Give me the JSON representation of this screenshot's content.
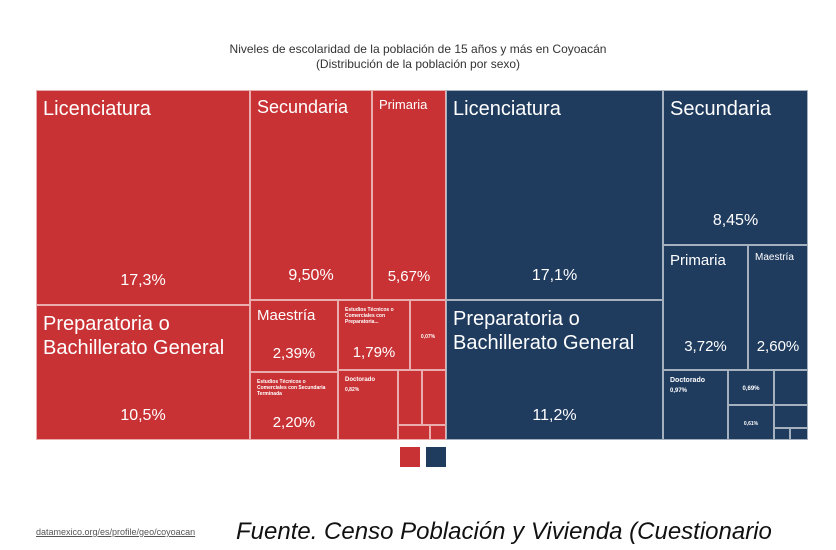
{
  "chart_data": {
    "type": "treemap",
    "title": "Niveles de escolaridad de la población de 15 años y más en Coyoacán",
    "subtitle": "(Distribución de la población por sexo)",
    "series": [
      {
        "color": "#c93235",
        "categories": [
          "Licenciatura",
          "Preparatoria o Bachillerato General",
          "Secundaria",
          "Primaria",
          "Maestría",
          "Estudios Técnicos o Comerciales con Secundaria Terminada",
          "Estudios Técnicos o Comerciales con Preparatoria...",
          null,
          "Doctorado",
          null,
          null,
          null,
          null
        ],
        "values": [
          17.3,
          10.5,
          9.5,
          5.67,
          2.39,
          2.2,
          1.79,
          0.07,
          0.82,
          0.3,
          0.25,
          0.1,
          0.05
        ],
        "value_labels": [
          "17,3%",
          "10,5%",
          "9,50%",
          "5,67%",
          "2,39%",
          "2,20%",
          "1,79%",
          "0,07%",
          "0,82%",
          null,
          null,
          null,
          null
        ]
      },
      {
        "color": "#1f3b5e",
        "categories": [
          "Licenciatura",
          "Preparatoria o Bachillerato General",
          "Secundaria",
          "Primaria",
          "Maestría",
          "Doctorado",
          null,
          null,
          null,
          null,
          null,
          null
        ],
        "values": [
          17.1,
          11.2,
          8.45,
          3.72,
          2.6,
          0.97,
          0.69,
          0.61,
          0.4,
          0.25,
          0.1,
          0.1
        ],
        "value_labels": [
          "17,1%",
          "11,2%",
          "8,45%",
          "3,72%",
          "2,60%",
          "0,97%",
          "0,69%",
          "0,61%",
          null,
          null,
          null,
          null
        ]
      }
    ]
  },
  "footer": {
    "link": "datamexico.org/es/profile/geo/coyoacan",
    "source": "Fuente. Censo Población y Vivienda (Cuestionario"
  }
}
